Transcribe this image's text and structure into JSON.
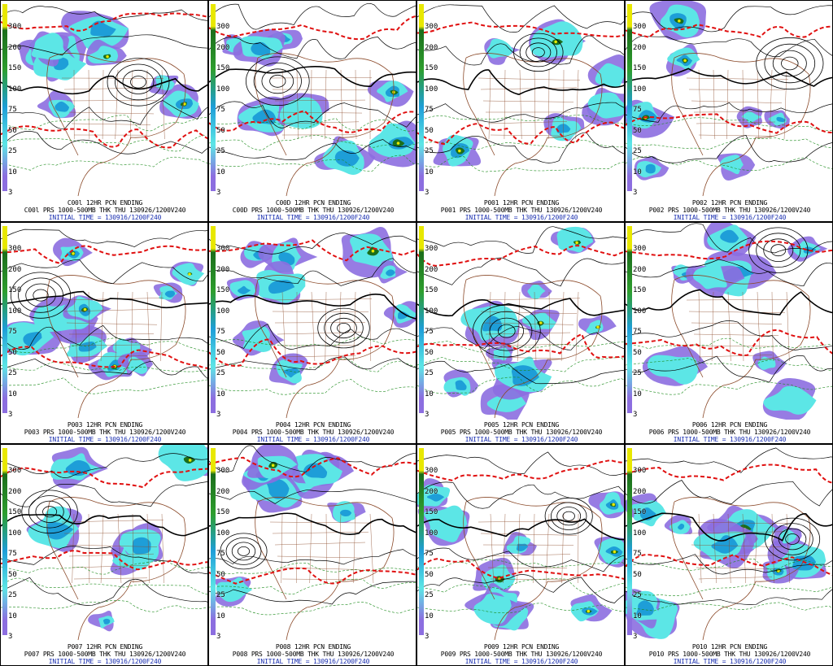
{
  "colors": {
    "precip_light": "#5ce6e6",
    "precip_mid": "#1e9ed8",
    "precip_heavy": "#1b6e1b",
    "precip_extreme": "#e8e800",
    "precip_fringe": "#8c6ee0",
    "thickness_contour": "#e01010",
    "pressure_contour": "#000000",
    "low_contour": "#1a8a1a",
    "coastline": "#8b4a2a",
    "caption_initial_time": "#1a2fb0"
  },
  "colorbar_levels": [
    "300",
    "200",
    "150",
    "100",
    "75",
    "50",
    "25",
    "10",
    "3"
  ],
  "panels": [
    {
      "member": "C00l",
      "line1": "C00l  12HR PCN ENDING",
      "line2": "C00l PRS 1000-500MB THK THU 130926/1200V240",
      "line3": "INITIAL TIME = 130916/1200F240"
    },
    {
      "member": "C00D",
      "line1": "C00D  12HR PCN ENDING",
      "line2": "C00D PRS 1000-500MB THK THU 130926/1200V240",
      "line3": "INITIAL TIME = 130916/1200F240"
    },
    {
      "member": "P001",
      "line1": "P001  12HR PCN ENDING",
      "line2": "P001 PRS 1000-500MB THK THU 130926/1200V240",
      "line3": "INITIAL TIME = 130916/1200F240"
    },
    {
      "member": "P002",
      "line1": "P002  12HR PCN ENDING",
      "line2": "P002 PRS 1000-500MB THK THU 130926/1200V240",
      "line3": "INITIAL TIME = 130916/1200F240"
    },
    {
      "member": "P003",
      "line1": "P003  12HR PCN ENDING",
      "line2": "P003 PRS 1000-500MB THK THU 130926/1200V240",
      "line3": "INITIAL TIME = 130916/1200F240"
    },
    {
      "member": "P004",
      "line1": "P004  12HR PCN ENDING",
      "line2": "P004 PRS 1000-500MB THK THU 130926/1200V240",
      "line3": "INITIAL TIME = 130916/1200F240"
    },
    {
      "member": "P005",
      "line1": "P005  12HR PCN ENDING",
      "line2": "P005 PRS 1000-500MB THK THU 130926/1200V240",
      "line3": "INITIAL TIME = 130916/1200F240"
    },
    {
      "member": "P006",
      "line1": "P006  12HR PCN ENDING",
      "line2": "P006 PRS 1000-500MB THK THU 130926/1200V240",
      "line3": "INITIAL TIME = 130916/1200F240"
    },
    {
      "member": "P007",
      "line1": "P007  12HR PCN ENDING",
      "line2": "P007 PRS 1000-500MB THK THU 130926/1200V240",
      "line3": "INITIAL TIME = 130916/1200F240"
    },
    {
      "member": "P008",
      "line1": "P008  12HR PCN ENDING",
      "line2": "P008 PRS 1000-500MB THK THU 130926/1200V240",
      "line3": "INITIAL TIME = 130916/1200F240"
    },
    {
      "member": "P009",
      "line1": "P009  12HR PCN ENDING",
      "line2": "P009 PRS 1000-500MB THK THU 130926/1200V240",
      "line3": "INITIAL TIME = 130916/1200F240"
    },
    {
      "member": "P010",
      "line1": "P010  12HR PCN ENDING",
      "line2": "P010 PRS 1000-500MB THK THU 130926/1200V240",
      "line3": "INITIAL TIME = 130916/1200F240"
    }
  ]
}
